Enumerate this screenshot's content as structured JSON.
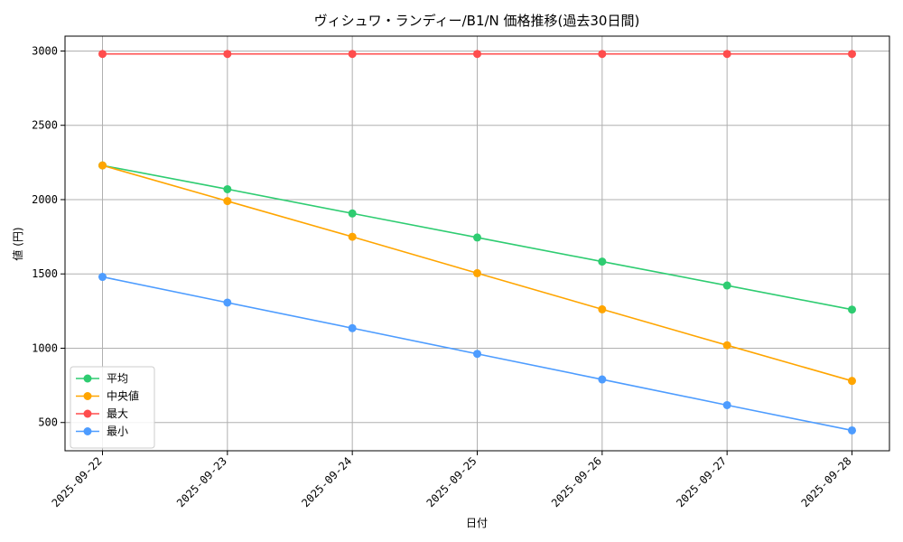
{
  "chart_data": {
    "type": "line",
    "title": "ヴィシュワ・ランディー/B1/N 価格推移(過去30日間)",
    "xlabel": "日付",
    "ylabel": "値 (円)",
    "categories": [
      "2025-09-22",
      "2025-09-23",
      "2025-09-24",
      "2025-09-25",
      "2025-09-26",
      "2025-09-27",
      "2025-09-28"
    ],
    "ylim": [
      310,
      3100
    ],
    "yticks": [
      500,
      1000,
      1500,
      2000,
      2500,
      3000
    ],
    "grid": true,
    "legend_position": "lower-left",
    "series": [
      {
        "name": "平均",
        "color": "#2ecc71",
        "values": [
          2230,
          2070,
          1907,
          1745,
          1583,
          1422,
          1260
        ]
      },
      {
        "name": "中央値",
        "color": "#ffa500",
        "values": [
          2230,
          1990,
          1750,
          1505,
          1262,
          1020,
          780
        ]
      },
      {
        "name": "最大",
        "color": "#ff4d4d",
        "values": [
          2980,
          2980,
          2980,
          2980,
          2980,
          2980,
          2980
        ]
      },
      {
        "name": "最小",
        "color": "#4d9cff",
        "values": [
          1480,
          1307,
          1135,
          962,
          790,
          617,
          447
        ]
      }
    ]
  }
}
